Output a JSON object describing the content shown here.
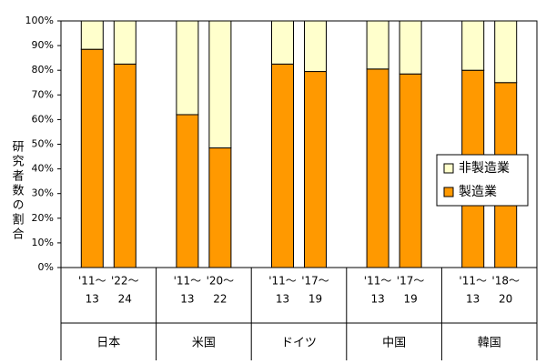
{
  "chart_data": {
    "type": "stacked-bar",
    "y_label": "研究者数の割合",
    "groups": [
      "日本",
      "米国",
      "ドイツ",
      "中国",
      "韓国"
    ],
    "categories": [
      [
        "'11～",
        "13"
      ],
      [
        "'22～",
        "24"
      ],
      [
        "'11～",
        "13"
      ],
      [
        "'20～",
        "22"
      ],
      [
        "'11～",
        "13"
      ],
      [
        "'17～",
        "19"
      ],
      [
        "'11～",
        "13"
      ],
      [
        "'17～",
        "19"
      ],
      [
        "'11～",
        "13"
      ],
      [
        "'18～",
        "20"
      ]
    ],
    "series": [
      {
        "name": "製造業",
        "color": "#ff9900",
        "values": [
          88.5,
          82.5,
          62,
          48.5,
          82.5,
          79.5,
          80.5,
          78.5,
          80,
          75
        ]
      },
      {
        "name": "非製造業",
        "color": "#ffffcc",
        "values": [
          11.5,
          17.5,
          38,
          51.5,
          17.5,
          20.5,
          19.5,
          21.5,
          20,
          25
        ]
      }
    ],
    "ylim": [
      0,
      100
    ],
    "yticks": [
      {
        "value": 0,
        "label": "0%"
      },
      {
        "value": 10,
        "label": "10%"
      },
      {
        "value": 20,
        "label": "20%"
      },
      {
        "value": 30,
        "label": "30%"
      },
      {
        "value": 40,
        "label": "40%"
      },
      {
        "value": 50,
        "label": "50%"
      },
      {
        "value": 60,
        "label": "60%"
      },
      {
        "value": 70,
        "label": "70%"
      },
      {
        "value": 80,
        "label": "80%"
      },
      {
        "value": 90,
        "label": "90%"
      },
      {
        "value": 100,
        "label": "100%"
      }
    ],
    "legend": "right"
  }
}
